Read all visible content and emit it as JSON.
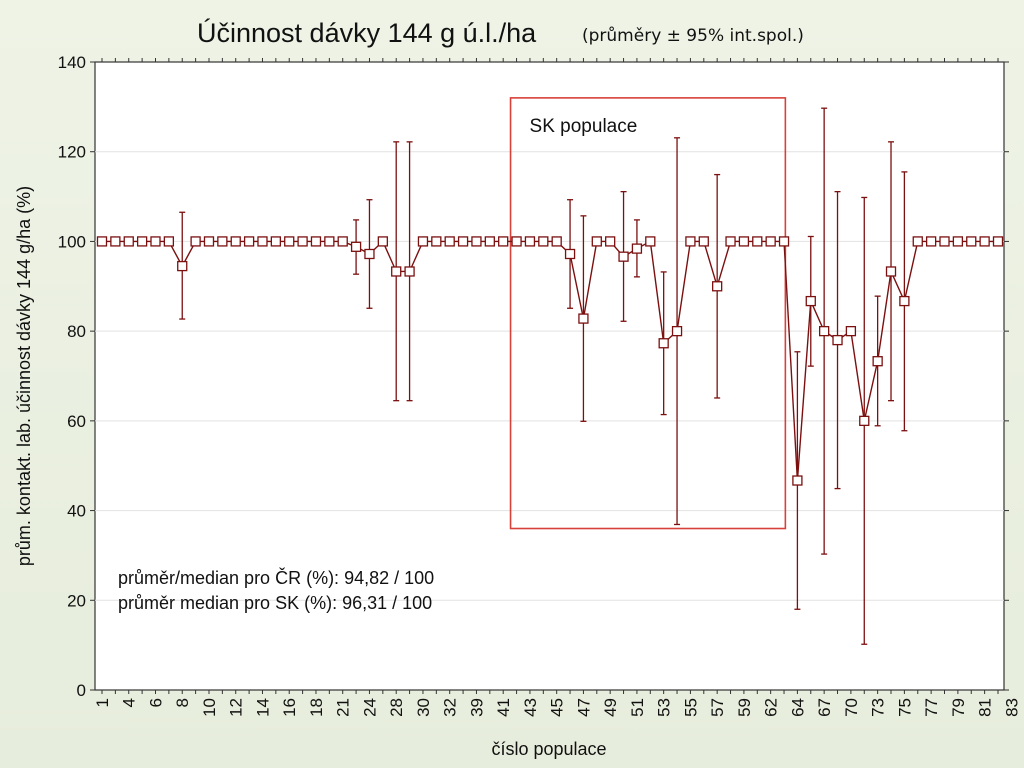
{
  "chart_data": {
    "type": "line",
    "title": "Účinnost dávky 144 g ú.l./ha",
    "subtitle": "(průměry ± 95% int.spol.)",
    "xlabel": "číslo populace",
    "ylabel": "prům. kontakt. lab. účinnost dávky 144 g/ha (%)",
    "ylim": [
      0,
      140
    ],
    "yticks": [
      0,
      20,
      40,
      60,
      80,
      100,
      120,
      140
    ],
    "grid": true,
    "series_color": "#7b1010",
    "highlight_color": "#d8403a",
    "categories": [
      "1",
      "2",
      "4",
      "5",
      "6",
      "7",
      "8",
      "9",
      "10",
      "11",
      "12",
      "13",
      "14",
      "15",
      "16",
      "17",
      "18",
      "19",
      "20",
      "21",
      "22",
      "24",
      "25",
      "28",
      "29",
      "30",
      "31",
      "32",
      "33",
      "34",
      "39",
      "40",
      "41",
      "42",
      "43",
      "44",
      "45",
      "46",
      "47",
      "48",
      "49",
      "50",
      "51",
      "52",
      "53",
      "54",
      "55",
      "56",
      "57",
      "58",
      "59",
      "60",
      "64",
      "65",
      "66",
      "67",
      "70",
      "73",
      "74",
      "75",
      "76",
      "77",
      "78",
      "79",
      "80",
      "81",
      "82",
      "83"
    ],
    "tick_labels": [
      "1",
      "4",
      "6",
      "8",
      "10",
      "12",
      "14",
      "16",
      "18",
      "21",
      "24",
      "28",
      "30",
      "32",
      "39",
      "41",
      "43",
      "45",
      "47",
      "49",
      "51",
      "53",
      "55",
      "57",
      "59",
      "62",
      "64",
      "67",
      "70",
      "73",
      "75",
      "77",
      "79",
      "81",
      "83"
    ],
    "tick_label_positions": [
      1,
      3,
      5,
      7,
      9,
      11,
      13,
      15,
      17,
      19,
      21,
      23,
      25,
      27,
      29,
      31,
      33,
      35,
      37,
      39,
      41,
      43,
      45,
      47,
      49,
      51,
      53,
      55,
      57,
      59,
      61,
      63,
      65,
      67,
      69
    ],
    "means": [
      100,
      100,
      100,
      100,
      100,
      100,
      94.5,
      100,
      100,
      100,
      100,
      100,
      100,
      100,
      100,
      100,
      100,
      100,
      100,
      98.8,
      97.2,
      100,
      93.3,
      93.3,
      100,
      100,
      100,
      100,
      100,
      100,
      100,
      100,
      100,
      100,
      100,
      97.2,
      82.8,
      100,
      100,
      96.6,
      98.4,
      100,
      77.3,
      80,
      100,
      100,
      90,
      100,
      100,
      100,
      100,
      100,
      46.7,
      86.7,
      80,
      78,
      80,
      60,
      73.3,
      93.3,
      86.7,
      100,
      100,
      100,
      100,
      100,
      100,
      100
    ],
    "upper": [
      100,
      100,
      100,
      100,
      100,
      100,
      106.5,
      100,
      100,
      100,
      100,
      100,
      100,
      100,
      100,
      100,
      100,
      100,
      100,
      104.8,
      109.3,
      100,
      122.2,
      122.2,
      100,
      100,
      100,
      100,
      100,
      100,
      100,
      100,
      100,
      100,
      100,
      109.3,
      105.7,
      100,
      100,
      111.1,
      104.8,
      100,
      93.2,
      123.1,
      100,
      100,
      114.9,
      100,
      100,
      100,
      100,
      100,
      75.4,
      101.1,
      129.7,
      111.1,
      100,
      109.8,
      87.8,
      122.2,
      115.5,
      100,
      100,
      100,
      100,
      100,
      100,
      100
    ],
    "lower": [
      100,
      100,
      100,
      100,
      100,
      100,
      82.7,
      100,
      100,
      100,
      100,
      100,
      100,
      100,
      100,
      100,
      100,
      100,
      100,
      92.7,
      85.1,
      100,
      64.5,
      64.5,
      100,
      100,
      100,
      100,
      100,
      100,
      100,
      100,
      100,
      100,
      100,
      85.1,
      59.9,
      100,
      100,
      82.2,
      92.1,
      100,
      61.4,
      36.9,
      100,
      100,
      65.1,
      100,
      100,
      100,
      100,
      100,
      18,
      72.2,
      30.3,
      44.9,
      100,
      10.2,
      58.9,
      64.5,
      57.8,
      100,
      100,
      100,
      100,
      100,
      100,
      100
    ],
    "highlight_box": {
      "label": "SK populace",
      "x_from_index": 30.55,
      "x_to_index": 51.1,
      "y_from": 36,
      "y_to": 132
    },
    "annotations": [
      "průměr/median pro ČR (%): 94,82 / 100",
      "průměr median pro SK (%): 96,31 / 100"
    ]
  }
}
